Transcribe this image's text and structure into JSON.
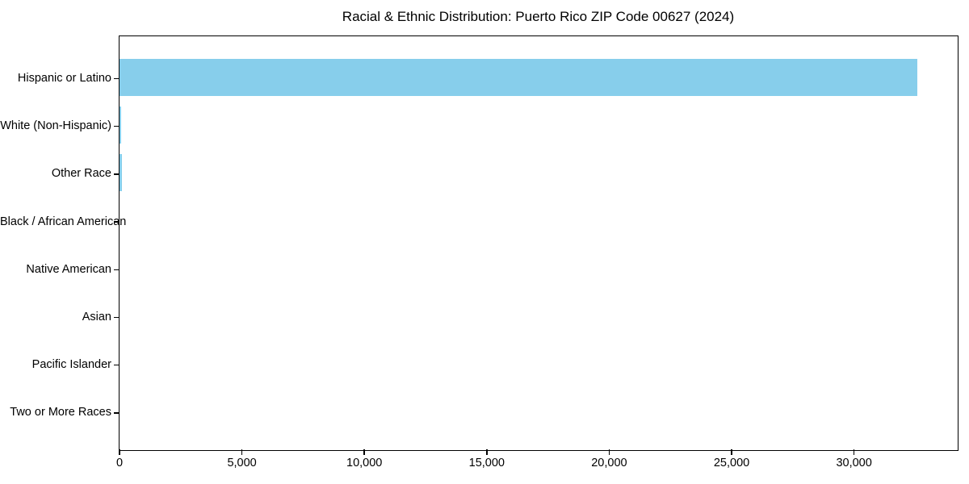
{
  "figure": {
    "background": "#ffffff",
    "text_color": "#000000"
  },
  "chart_data": {
    "type": "bar",
    "orientation": "horizontal",
    "title": "Racial & Ethnic Distribution: Puerto Rico ZIP Code 00627 (2024)",
    "categories": [
      "Hispanic or Latino",
      "White (Non-Hispanic)",
      "Other Race",
      "Black / African American",
      "Native American",
      "Asian",
      "Pacific Islander",
      "Two or More Races"
    ],
    "values": [
      32580,
      80,
      85,
      0,
      0,
      0,
      0,
      0
    ],
    "xlabel": "",
    "ylabel": "",
    "xlim": [
      0,
      34200
    ],
    "x_ticks": [
      0,
      5000,
      10000,
      15000,
      20000,
      25000,
      30000
    ],
    "x_tick_labels": [
      "0",
      "5,000",
      "10,000",
      "15,000",
      "20,000",
      "25,000",
      "30,000"
    ],
    "bar_color": "#87CEEB",
    "frame": "full-box",
    "grid": false,
    "legend": null
  }
}
